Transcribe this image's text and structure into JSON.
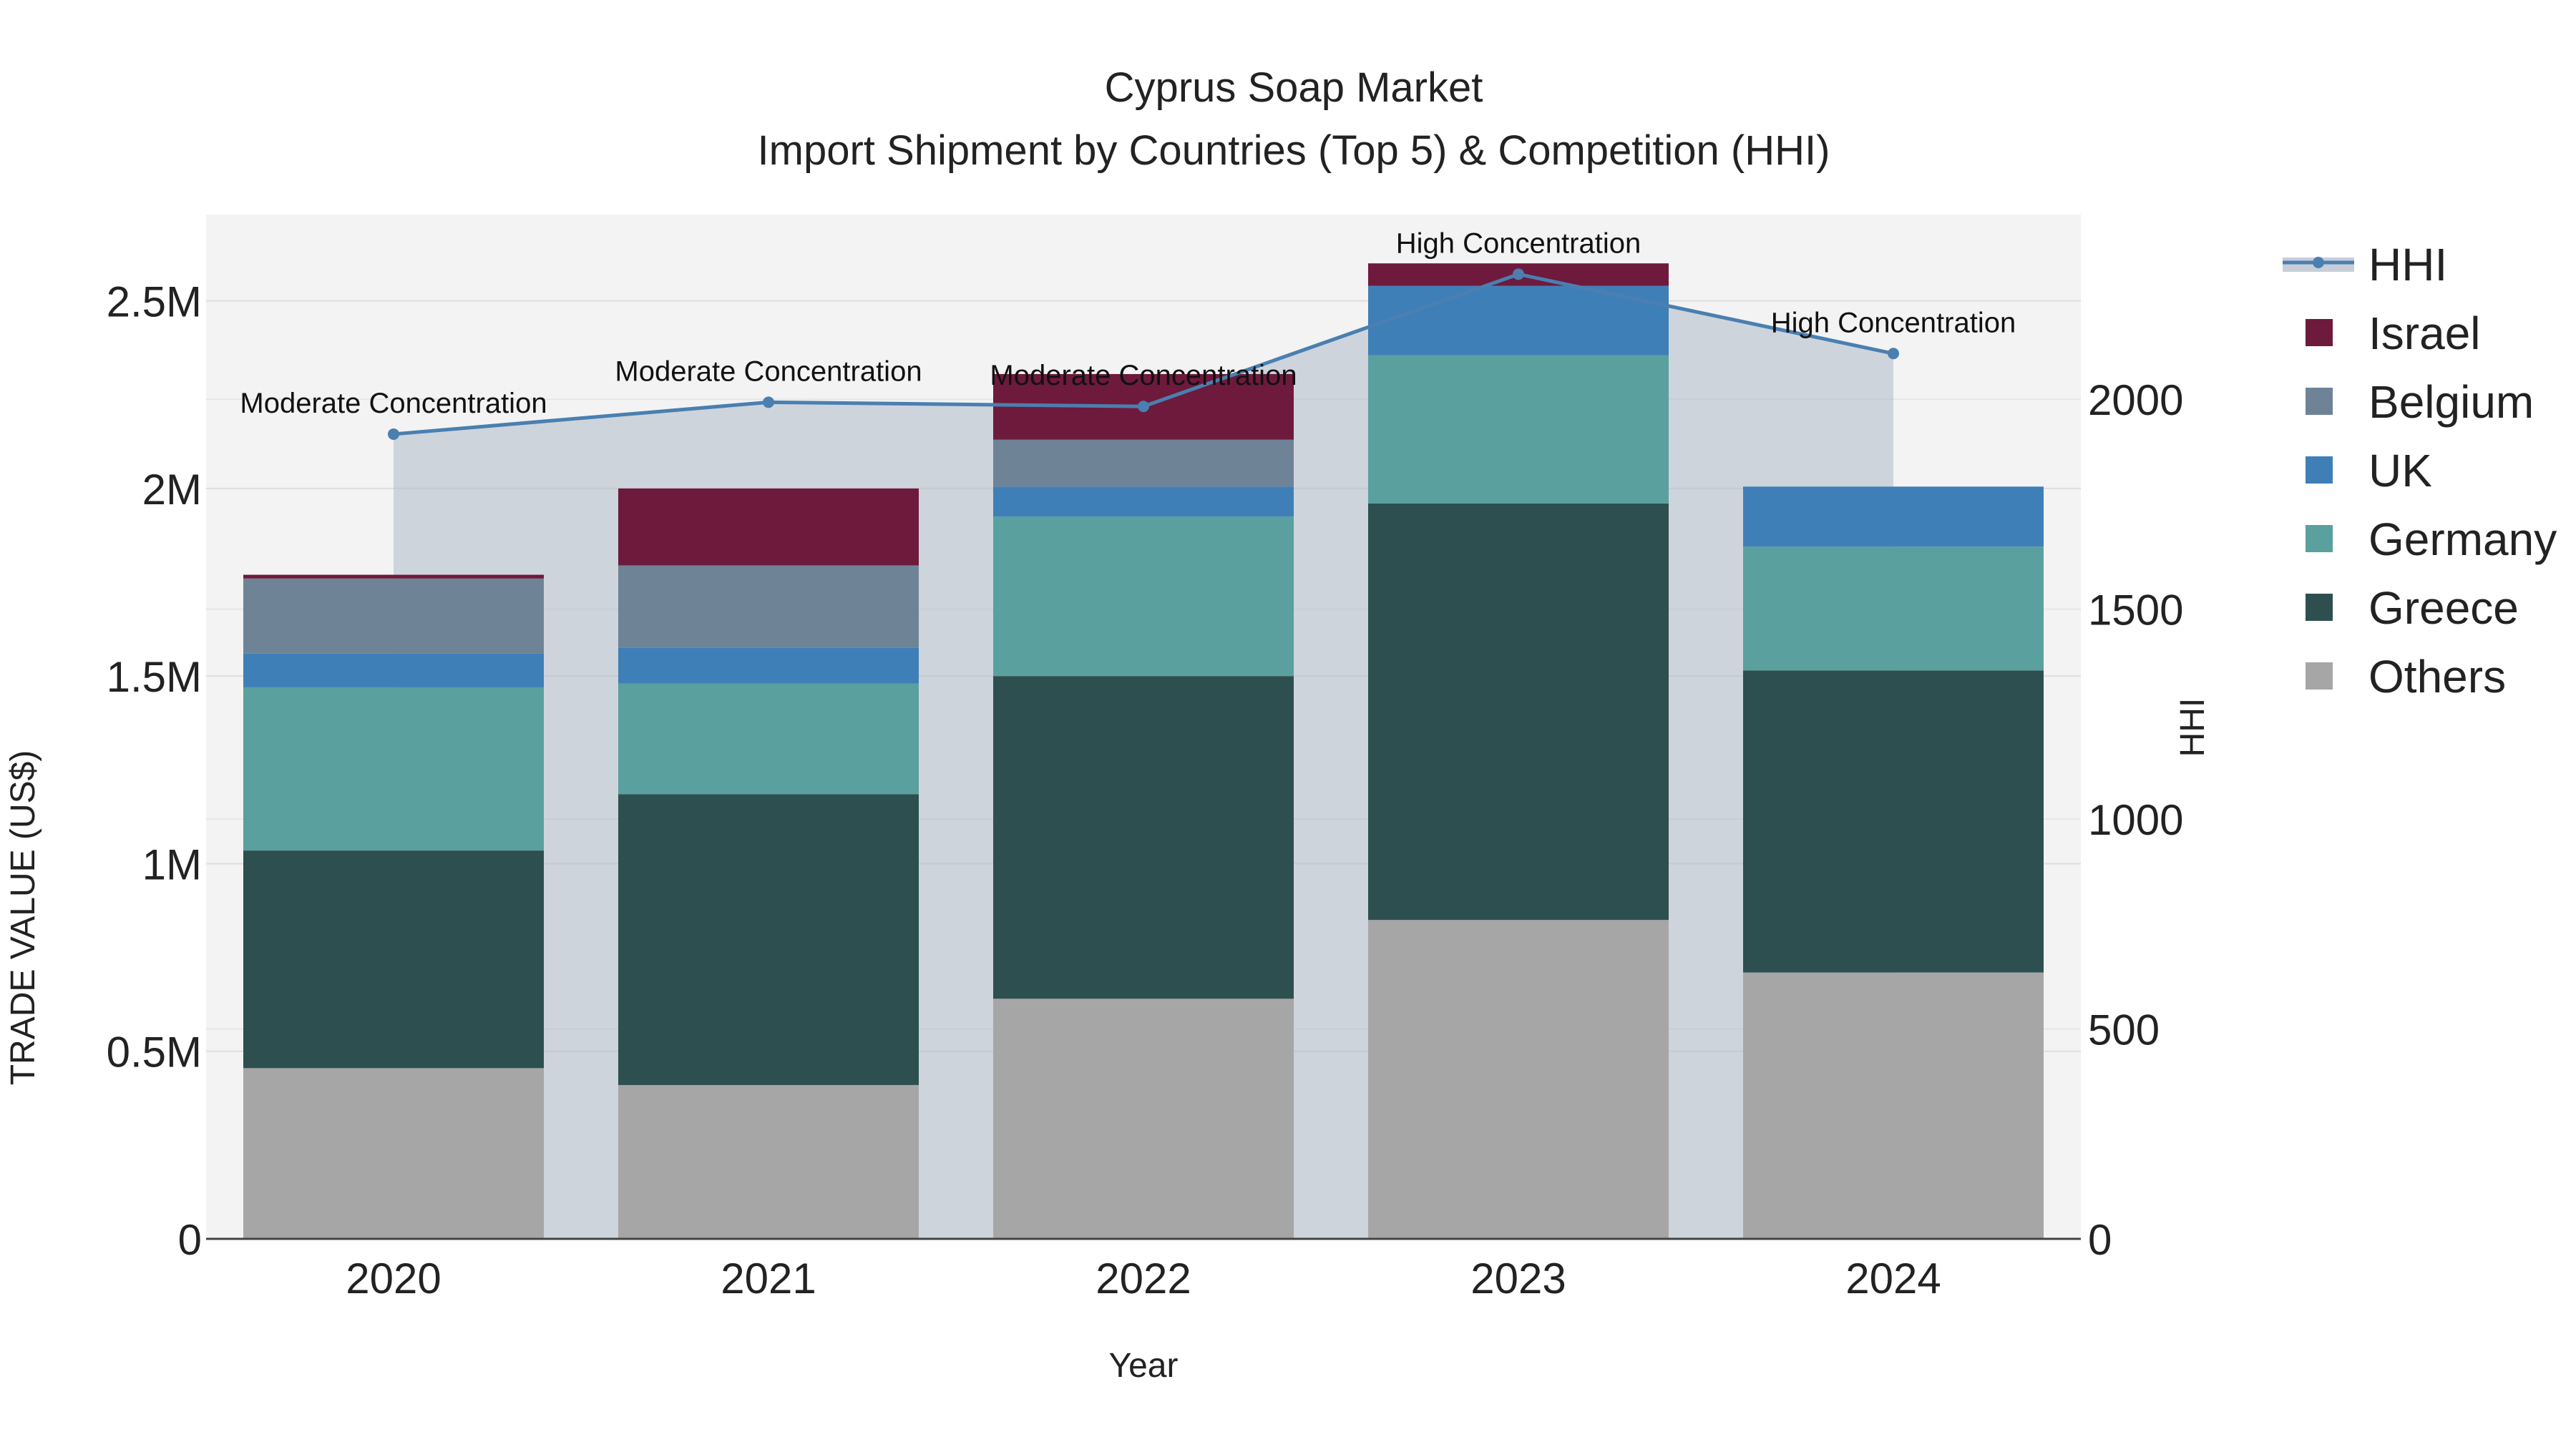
{
  "chart_data": {
    "type": "bar",
    "title": "Cyprus Soap Market",
    "subtitle": "Import Shipment by Countries (Top 5) & Competition (HHI)",
    "xlabel": "Year",
    "ylabel": "TRADE VALUE (US$)",
    "y2label": "HHI",
    "categories": [
      "2020",
      "2021",
      "2022",
      "2023",
      "2024"
    ],
    "ylim": [
      0,
      2730000
    ],
    "y2lim": [
      0,
      2440
    ],
    "yticks": [
      {
        "value": 0,
        "label": "0"
      },
      {
        "value": 500000,
        "label": "0.5M"
      },
      {
        "value": 1000000,
        "label": "1M"
      },
      {
        "value": 1500000,
        "label": "1.5M"
      },
      {
        "value": 2000000,
        "label": "2M"
      },
      {
        "value": 2500000,
        "label": "2.5M"
      }
    ],
    "y2ticks": [
      {
        "value": 0,
        "label": "0"
      },
      {
        "value": 500,
        "label": "500"
      },
      {
        "value": 1000,
        "label": "1000"
      },
      {
        "value": 1500,
        "label": "1500"
      },
      {
        "value": 2000,
        "label": "2000"
      }
    ],
    "stack_order": [
      "Others",
      "Greece",
      "Germany",
      "UK",
      "Belgium",
      "Israel"
    ],
    "series": [
      {
        "name": "Others",
        "color": "#a6a6a6",
        "values": [
          455000,
          410000,
          640000,
          850000,
          710000
        ]
      },
      {
        "name": "Greece",
        "color": "#2e4f4f",
        "values": [
          580000,
          775000,
          860000,
          1110000,
          805000
        ]
      },
      {
        "name": "Germany",
        "color": "#5aa09e",
        "values": [
          435000,
          295000,
          425000,
          395000,
          330000
        ]
      },
      {
        "name": "UK",
        "color": "#3f7fb8",
        "values": [
          90000,
          95000,
          80000,
          185000,
          160000
        ]
      },
      {
        "name": "Belgium",
        "color": "#6e8396",
        "values": [
          200000,
          220000,
          125000,
          0,
          0
        ]
      },
      {
        "name": "Israel",
        "color": "#6e1a3c",
        "values": [
          10000,
          205000,
          175000,
          60000,
          0
        ]
      }
    ],
    "hhi": {
      "name": "HHI",
      "color": "#4a7fb0",
      "values": [
        1917,
        1993,
        1983,
        2298,
        2109
      ],
      "annotations": [
        "Moderate Concentration",
        "Moderate Concentration",
        "Moderate Concentration",
        "High Concentration",
        "High Concentration"
      ]
    },
    "legend_order": [
      "HHI",
      "Israel",
      "Belgium",
      "UK",
      "Germany",
      "Greece",
      "Others"
    ],
    "legend_position": "right",
    "grid": true
  }
}
